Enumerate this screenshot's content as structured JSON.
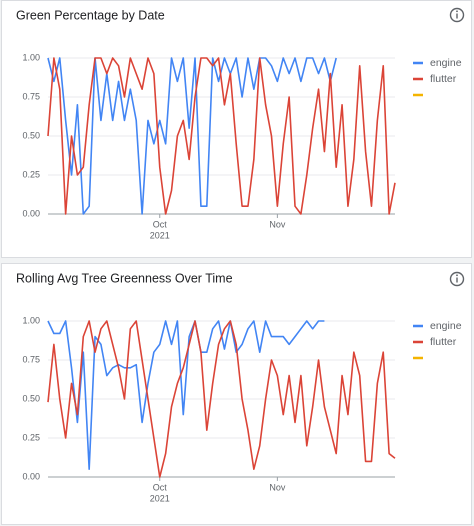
{
  "chart_data": [
    {
      "type": "line",
      "title": "Green Percentage by Date",
      "xlim": [
        0,
        59
      ],
      "xticks": [
        {
          "value": 19,
          "label": "Oct",
          "sublabel": "2021"
        },
        {
          "value": 39,
          "label": "Nov"
        }
      ],
      "ylim": [
        0,
        1
      ],
      "yticks": [
        {
          "value": 0,
          "label": "0.00"
        },
        {
          "value": 0.25,
          "label": "0.25"
        },
        {
          "value": 0.5,
          "label": "0.50"
        },
        {
          "value": 0.75,
          "label": "0.75"
        },
        {
          "value": 1,
          "label": "1.00"
        }
      ],
      "grid": true,
      "legend": "right",
      "series": [
        {
          "name": "engine",
          "color": "#4285f4",
          "values": [
            1.0,
            0.85,
            1.0,
            0.6,
            0.25,
            0.7,
            0.0,
            0.05,
            1.0,
            0.6,
            0.9,
            0.6,
            0.85,
            0.6,
            0.8,
            0.6,
            0.0,
            0.6,
            0.45,
            0.6,
            0.45,
            1.0,
            0.85,
            1.0,
            0.55,
            1.0,
            0.05,
            0.05,
            1.0,
            0.85,
            1.0,
            0.9,
            1.0,
            0.75,
            1.0,
            0.8,
            1.0,
            1.0,
            0.95,
            0.85,
            1.0,
            0.9,
            1.0,
            0.85,
            1.0,
            1.0,
            0.9,
            1.0,
            0.85,
            1.0,
            null,
            null,
            null,
            null,
            null,
            null,
            null,
            null,
            null,
            null
          ]
        },
        {
          "name": "flutter",
          "color": "#db4437",
          "values": [
            0.5,
            1.0,
            0.8,
            0.0,
            0.5,
            0.25,
            0.3,
            0.7,
            1.0,
            1.0,
            0.9,
            1.0,
            0.95,
            0.75,
            1.0,
            0.9,
            0.8,
            1.0,
            0.9,
            0.3,
            0.0,
            0.15,
            0.5,
            0.6,
            0.35,
            0.75,
            1.0,
            1.0,
            0.95,
            1.0,
            0.7,
            0.9,
            0.45,
            0.05,
            0.05,
            0.35,
            1.0,
            0.7,
            0.5,
            0.05,
            0.45,
            0.75,
            0.05,
            0.0,
            0.25,
            0.55,
            0.8,
            0.4,
            0.9,
            0.3,
            0.7,
            0.05,
            0.35,
            0.95,
            0.4,
            0.05,
            0.6,
            0.95,
            0.0,
            0.2
          ]
        },
        {
          "name": null,
          "color": "#f4b400"
        }
      ]
    },
    {
      "type": "line",
      "title": "Rolling Avg Tree Greenness Over Time",
      "xlim": [
        0,
        59
      ],
      "xticks": [
        {
          "value": 19,
          "label": "Oct",
          "sublabel": "2021"
        },
        {
          "value": 39,
          "label": "Nov"
        }
      ],
      "ylim": [
        0,
        1
      ],
      "yticks": [
        {
          "value": 0,
          "label": "0.00"
        },
        {
          "value": 0.25,
          "label": "0.25"
        },
        {
          "value": 0.5,
          "label": "0.50"
        },
        {
          "value": 0.75,
          "label": "0.75"
        },
        {
          "value": 1,
          "label": "1.00"
        }
      ],
      "grid": true,
      "legend": "right",
      "series": [
        {
          "name": "engine",
          "color": "#4285f4",
          "values": [
            1.0,
            0.92,
            0.92,
            1.0,
            0.7,
            0.35,
            0.8,
            0.05,
            0.9,
            0.85,
            0.65,
            0.7,
            0.72,
            0.7,
            0.7,
            0.72,
            0.35,
            0.6,
            0.8,
            0.85,
            1.0,
            0.85,
            1.0,
            0.4,
            0.9,
            1.0,
            0.8,
            0.8,
            0.95,
            1.0,
            0.82,
            1.0,
            0.8,
            0.85,
            0.95,
            1.0,
            0.8,
            1.0,
            0.9,
            0.9,
            0.9,
            0.85,
            0.9,
            0.95,
            1.0,
            0.95,
            1.0,
            1.0,
            null,
            null,
            null,
            null,
            null,
            null,
            null,
            null,
            null,
            null,
            null,
            null
          ]
        },
        {
          "name": "flutter",
          "color": "#db4437",
          "values": [
            0.48,
            0.85,
            0.5,
            0.25,
            0.6,
            0.4,
            0.9,
            1.0,
            0.8,
            0.95,
            1.0,
            0.85,
            0.7,
            0.5,
            0.95,
            1.0,
            0.75,
            0.5,
            0.25,
            0.0,
            0.15,
            0.45,
            0.6,
            0.7,
            0.85,
            1.0,
            0.8,
            0.3,
            0.6,
            0.85,
            0.95,
            1.0,
            0.85,
            0.5,
            0.3,
            0.05,
            0.2,
            0.5,
            0.75,
            0.65,
            0.4,
            0.65,
            0.35,
            0.65,
            0.2,
            0.45,
            0.75,
            0.45,
            0.3,
            0.15,
            0.65,
            0.4,
            0.8,
            0.65,
            0.1,
            0.1,
            0.6,
            0.8,
            0.15,
            0.12
          ]
        },
        {
          "name": null,
          "color": "#f4b400"
        }
      ]
    }
  ]
}
